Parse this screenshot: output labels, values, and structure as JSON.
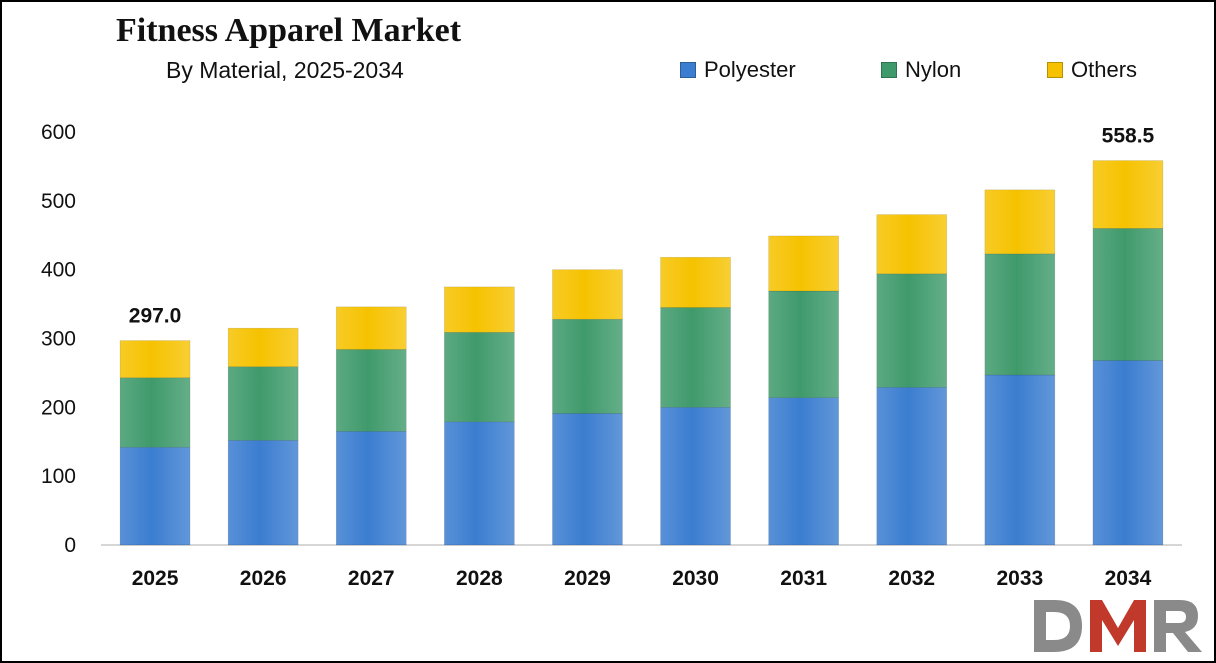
{
  "chart_data": {
    "type": "bar",
    "stacked": true,
    "title": "Fitness Apparel Market",
    "subtitle": "By Material, 2025-2034",
    "categories": [
      "2025",
      "2026",
      "2027",
      "2028",
      "2029",
      "2030",
      "2031",
      "2032",
      "2033",
      "2034"
    ],
    "series": [
      {
        "name": "Polyester",
        "color": "#3b7dd0",
        "values": [
          142,
          152,
          165,
          179,
          191,
          200,
          214,
          229,
          247,
          268
        ]
      },
      {
        "name": "Nylon",
        "color": "#3f9a6b",
        "values": [
          101,
          107,
          119,
          130,
          137,
          145,
          155,
          165,
          176,
          192
        ]
      },
      {
        "name": "Others",
        "color": "#f6c200",
        "values": [
          54,
          56,
          62,
          66,
          72,
          73,
          80,
          86,
          93,
          98.5
        ]
      }
    ],
    "ylim": [
      0,
      600
    ],
    "yticks": [
      0,
      100,
      200,
      300,
      400,
      500,
      600
    ],
    "annotations": [
      {
        "category": "2025",
        "label": "297.0"
      },
      {
        "category": "2034",
        "label": "558.5"
      }
    ],
    "xlabel": "",
    "ylabel": "",
    "grid": false,
    "legend_position": "top-right"
  },
  "logo": {
    "text": "DMR",
    "colors": [
      "#8a8a8a",
      "#c0392b"
    ]
  }
}
